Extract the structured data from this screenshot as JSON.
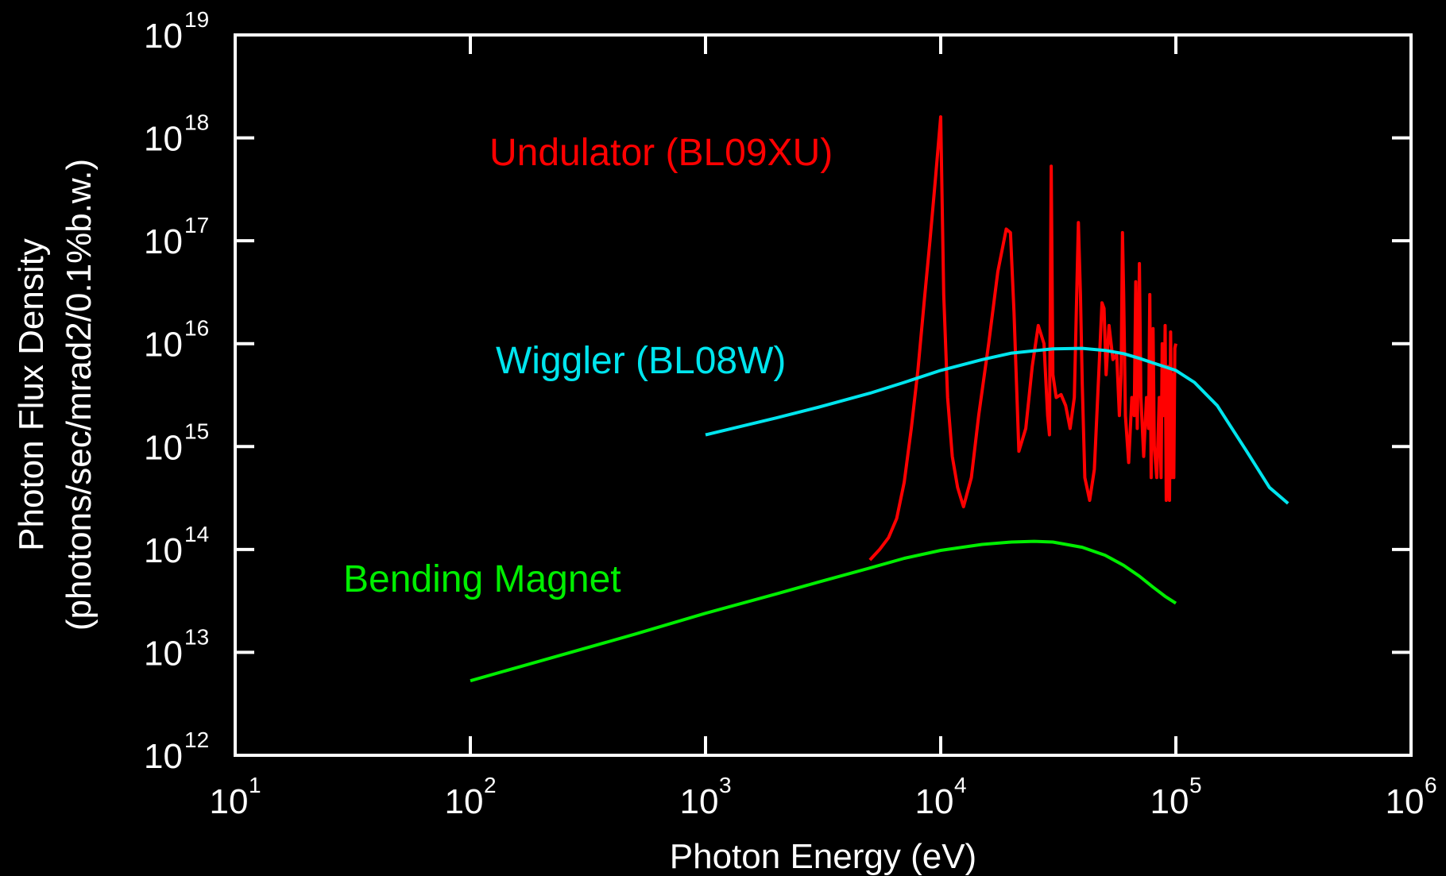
{
  "chart_data": {
    "type": "line",
    "x_scale": "log",
    "y_scale": "log",
    "xlim": [
      10,
      1000000
    ],
    "ylim": [
      1000000000000.0,
      1e+19
    ],
    "xlabel": "Photon Energy (eV)",
    "ylabel_line1": "Photon Flux Density",
    "ylabel_line2": "(photons/sec/mrad2/0.1%b.w.)",
    "x_ticks": [
      {
        "base": "10",
        "exp": "1",
        "value": 10
      },
      {
        "base": "10",
        "exp": "2",
        "value": 100
      },
      {
        "base": "10",
        "exp": "3",
        "value": 1000
      },
      {
        "base": "10",
        "exp": "4",
        "value": 10000
      },
      {
        "base": "10",
        "exp": "5",
        "value": 100000
      },
      {
        "base": "10",
        "exp": "6",
        "value": 1000000
      }
    ],
    "y_ticks": [
      {
        "base": "10",
        "exp": "12",
        "value": 1000000000000.0
      },
      {
        "base": "10",
        "exp": "13",
        "value": 10000000000000.0
      },
      {
        "base": "10",
        "exp": "14",
        "value": 100000000000000.0
      },
      {
        "base": "10",
        "exp": "15",
        "value": 1000000000000000.0
      },
      {
        "base": "10",
        "exp": "16",
        "value": 1e+16
      },
      {
        "base": "10",
        "exp": "17",
        "value": 1e+17
      },
      {
        "base": "10",
        "exp": "18",
        "value": 1e+18
      },
      {
        "base": "10",
        "exp": "19",
        "value": 1e+19
      }
    ],
    "grid": false,
    "background": "#000000",
    "axis_color": "#ffffff",
    "series": [
      {
        "name": "Undulator (BL09XU)",
        "color": "#ff0000",
        "x": [
          5000,
          5500,
          6000,
          6500,
          7000,
          7500,
          8000,
          8500,
          9000,
          9500,
          10000,
          10300,
          10700,
          11200,
          11800,
          12500,
          13500,
          14500,
          16000,
          17500,
          19000,
          19800,
          20500,
          21500,
          23000,
          24500,
          26000,
          27500,
          28500,
          29000,
          29500,
          30000,
          31000,
          32500,
          34000,
          35500,
          37000,
          38500,
          39300,
          40000,
          41000,
          43000,
          45000,
          47000,
          48500,
          49500,
          50500,
          52000,
          54000,
          56000,
          57500,
          58500,
          59300,
          60000,
          61000,
          63000,
          65000,
          66500,
          67500,
          68500,
          69300,
          70000,
          71000,
          73000,
          75000,
          76500,
          77500,
          78500,
          79300,
          80000,
          81000,
          83000,
          85000,
          86500,
          87500,
          88500,
          89300,
          90000,
          91000,
          92500,
          94000,
          95000,
          96000,
          97000,
          98000,
          99000,
          100000
        ],
        "y": [
          79000000000000.0,
          100000000000000.0,
          130000000000000.0,
          200000000000000.0,
          450000000000000.0,
          1500000000000000.0,
          5500000000000000.0,
          2.5e+16,
          1e+17,
          4e+17,
          1.6e+18,
          3e+16,
          3000000000000000.0,
          800000000000000.0,
          400000000000000.0,
          260000000000000.0,
          500000000000000.0,
          2000000000000000.0,
          1e+16,
          5e+16,
          1.3e+17,
          1.2e+17,
          2e+16,
          900000000000000.0,
          1500000000000000.0,
          6000000000000000.0,
          1.5e+16,
          1e+16,
          2000000000000000.0,
          1300000000000000.0,
          5.3e+17,
          5000000000000000.0,
          3000000000000000.0,
          3200000000000000.0,
          2500000000000000.0,
          1500000000000000.0,
          3000000000000000.0,
          1.5e+17,
          3e+16,
          4000000000000000.0,
          500000000000000.0,
          300000000000000.0,
          600000000000000.0,
          5000000000000000.0,
          2.5e+16,
          2.2e+16,
          5000000000000000.0,
          1.5e+16,
          7000000000000000.0,
          8000000000000000.0,
          2000000000000000.0,
          5000000000000000.0,
          1.2e+17,
          3e+16,
          2000000000000000.0,
          700000000000000.0,
          3000000000000000.0,
          2000000000000000.0,
          4e+16,
          1500000000000000.0,
          1e+16,
          6e+16,
          3000000000000000.0,
          800000000000000.0,
          3000000000000000.0,
          1500000000000000.0,
          3e+16,
          500000000000000.0,
          7000000000000000.0,
          1.4e+16,
          1000000000000000.0,
          500000000000000.0,
          3000000000000000.0,
          500000000000000.0,
          1e+16,
          2000000000000000.0,
          3000000000000000.0,
          1.5e+16,
          300000000000000.0,
          6000000000000000.0,
          300000000000000.0,
          1.3e+16,
          500000000000000.0,
          5000000000000000.0,
          500000000000000.0,
          9000000000000000.0,
          1e+16
        ]
      },
      {
        "name": "Wiggler (BL08W)",
        "color": "#00e5ee",
        "x": [
          1000,
          2000,
          3000,
          5000,
          7000,
          10000,
          15000,
          20000,
          30000,
          40000,
          50000,
          60000,
          70000,
          80000,
          100000,
          120000,
          150000,
          200000,
          250000,
          300000
        ],
        "y": [
          1300000000000000.0,
          1900000000000000.0,
          2400000000000000.0,
          3300000000000000.0,
          4200000000000000.0,
          5500000000000000.0,
          7000000000000000.0,
          8100000000000000.0,
          8900000000000000.0,
          9000000000000000.0,
          8600000000000000.0,
          8000000000000000.0,
          7200000000000000.0,
          6500000000000000.0,
          5500000000000000.0,
          4200000000000000.0,
          2500000000000000.0,
          900000000000000.0,
          400000000000000.0,
          280000000000000.0
        ]
      },
      {
        "name": "Bending Magnet",
        "color": "#00ee00",
        "x": [
          100,
          200,
          500,
          1000,
          2000,
          3000,
          5000,
          7000,
          10000,
          15000,
          20000,
          25000,
          30000,
          40000,
          50000,
          60000,
          70000,
          80000,
          90000,
          100000
        ],
        "y": [
          5300000000000.0,
          8300000000000.0,
          15000000000000.0,
          24000000000000.0,
          37000000000000.0,
          48000000000000.0,
          66000000000000.0,
          82000000000000.0,
          98000000000000.0,
          112000000000000.0,
          118000000000000.0,
          120000000000000.0,
          118000000000000.0,
          105000000000000.0,
          88000000000000.0,
          70000000000000.0,
          55000000000000.0,
          43000000000000.0,
          35000000000000.0,
          30000000000000.0
        ]
      }
    ]
  },
  "annotations": {
    "undulator": "Undulator (BL09XU)",
    "wiggler": "Wiggler (BL08W)",
    "bending": "Bending Magnet"
  }
}
